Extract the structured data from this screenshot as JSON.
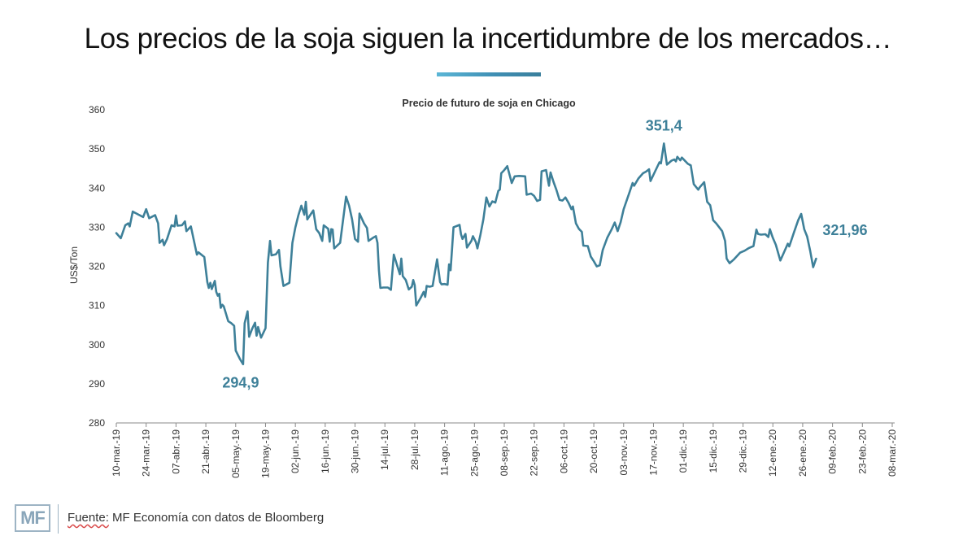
{
  "page": {
    "title": "Los precios de la soja siguen la incertidumbre de los mercados…",
    "footer": {
      "logo_text": "MF",
      "source_label": "Fuente:",
      "source_text": "MF Economía con datos de Bloomberg"
    }
  },
  "colors": {
    "line": "#3e8099",
    "annotation": "#3e8099",
    "axis": "#333333",
    "title_underline": "#4aa3c6"
  },
  "chart_data": {
    "type": "line",
    "title": "Precio de futuro de soja en Chicago",
    "xlabel": "",
    "ylabel": "US$/Ton",
    "ylim": [
      280,
      360
    ],
    "yticks": [
      280,
      290,
      300,
      310,
      320,
      330,
      340,
      350,
      360
    ],
    "grid": false,
    "categories": [
      "10-mar.-19",
      "24-mar.-19",
      "07-abr.-19",
      "21-abr.-19",
      "05-may.-19",
      "19-may.-19",
      "02-jun.-19",
      "16-jun.-19",
      "30-jun.-19",
      "14-jul.-19",
      "28-jul.-19",
      "11-ago.-19",
      "25-ago.-19",
      "08-sep.-19",
      "22-sep.-19",
      "06-oct.-19",
      "20-oct.-19",
      "03-nov.-19",
      "17-nov.-19",
      "01-dic.-19",
      "15-dic.-19",
      "29-dic.-19",
      "12-ene.-20",
      "26-ene.-20",
      "09-feb.-20",
      "23-feb.-20",
      "08-mar.-20"
    ],
    "series": [
      {
        "name": "Precio de futuro de soja en Chicago",
        "points": [
          [
            0,
            328.5
          ],
          [
            0.15,
            327.2
          ],
          [
            0.3,
            330.5
          ],
          [
            0.4,
            331
          ],
          [
            0.45,
            330.2
          ],
          [
            0.55,
            334
          ],
          [
            0.75,
            333.2
          ],
          [
            0.9,
            332.6
          ],
          [
            1.0,
            334.6
          ],
          [
            1.1,
            332.3
          ],
          [
            1.3,
            333.1
          ],
          [
            1.4,
            331
          ],
          [
            1.45,
            326
          ],
          [
            1.55,
            326.8
          ],
          [
            1.6,
            325.4
          ],
          [
            1.7,
            327
          ],
          [
            1.85,
            330.5
          ],
          [
            1.95,
            330.2
          ],
          [
            2.0,
            333
          ],
          [
            2.05,
            330.4
          ],
          [
            2.2,
            330.5
          ],
          [
            2.3,
            331.5
          ],
          [
            2.35,
            329
          ],
          [
            2.5,
            330.2
          ],
          [
            2.7,
            323
          ],
          [
            2.75,
            323.6
          ],
          [
            2.95,
            322.4
          ],
          [
            3.05,
            316
          ],
          [
            3.1,
            314.5
          ],
          [
            3.15,
            315.8
          ],
          [
            3.2,
            314.2
          ],
          [
            3.3,
            316.3
          ],
          [
            3.35,
            313.5
          ],
          [
            3.4,
            312.5
          ],
          [
            3.45,
            313
          ],
          [
            3.5,
            309.4
          ],
          [
            3.55,
            310.2
          ],
          [
            3.6,
            309.8
          ],
          [
            3.75,
            306
          ],
          [
            3.85,
            305.5
          ],
          [
            3.95,
            304.8
          ],
          [
            4.0,
            298.5
          ],
          [
            4.15,
            296.2
          ],
          [
            4.25,
            295
          ],
          [
            4.3,
            305.5
          ],
          [
            4.4,
            308.5
          ],
          [
            4.45,
            302
          ],
          [
            4.55,
            304
          ],
          [
            4.65,
            305.6
          ],
          [
            4.7,
            302.3
          ],
          [
            4.75,
            304.5
          ],
          [
            4.85,
            301.8
          ],
          [
            5.0,
            304.2
          ],
          [
            5.08,
            321
          ],
          [
            5.15,
            326.5
          ],
          [
            5.2,
            322.8
          ],
          [
            5.35,
            323.1
          ],
          [
            5.45,
            324.2
          ],
          [
            5.5,
            320
          ],
          [
            5.6,
            315
          ],
          [
            5.8,
            315.8
          ],
          [
            5.9,
            326
          ],
          [
            6.0,
            330
          ],
          [
            6.1,
            333
          ],
          [
            6.2,
            335.5
          ],
          [
            6.3,
            333.2
          ],
          [
            6.35,
            336.5
          ],
          [
            6.4,
            332
          ],
          [
            6.6,
            334.3
          ],
          [
            6.7,
            329.5
          ],
          [
            6.8,
            328.5
          ],
          [
            6.9,
            326.5
          ],
          [
            6.95,
            330.5
          ],
          [
            7.1,
            329.6
          ],
          [
            7.15,
            326.3
          ],
          [
            7.2,
            329.5
          ],
          [
            7.25,
            329.4
          ],
          [
            7.3,
            324.6
          ],
          [
            7.5,
            326
          ],
          [
            7.6,
            332
          ],
          [
            7.7,
            337.8
          ],
          [
            7.8,
            335.5
          ],
          [
            7.9,
            332
          ],
          [
            8.0,
            327
          ],
          [
            8.1,
            326.3
          ],
          [
            8.15,
            333.5
          ],
          [
            8.3,
            331
          ],
          [
            8.4,
            329.8
          ],
          [
            8.45,
            326.5
          ],
          [
            8.6,
            327.3
          ],
          [
            8.7,
            327.7
          ],
          [
            8.75,
            326
          ],
          [
            8.8,
            319
          ],
          [
            8.85,
            314.5
          ],
          [
            8.95,
            314.6
          ],
          [
            9.1,
            314.6
          ],
          [
            9.2,
            314
          ],
          [
            9.3,
            323
          ],
          [
            9.4,
            320.5
          ],
          [
            9.5,
            318
          ],
          [
            9.55,
            322
          ],
          [
            9.6,
            317.5
          ],
          [
            9.7,
            316.5
          ],
          [
            9.8,
            314.1
          ],
          [
            9.9,
            314.8
          ],
          [
            9.95,
            316.5
          ],
          [
            10.0,
            315.2
          ],
          [
            10.05,
            310
          ],
          [
            10.2,
            312
          ],
          [
            10.3,
            313.5
          ],
          [
            10.35,
            312.2
          ],
          [
            10.4,
            315
          ],
          [
            10.5,
            314.8
          ],
          [
            10.6,
            315
          ],
          [
            10.75,
            321.8
          ],
          [
            10.85,
            316
          ],
          [
            10.9,
            315.4
          ],
          [
            11.0,
            315.5
          ],
          [
            11.1,
            315.3
          ],
          [
            11.15,
            320.5
          ],
          [
            11.2,
            319
          ],
          [
            11.3,
            330
          ],
          [
            11.5,
            330.6
          ],
          [
            11.55,
            328.2
          ],
          [
            11.6,
            327
          ],
          [
            11.7,
            328.3
          ],
          [
            11.75,
            324.8
          ],
          [
            11.9,
            326.5
          ],
          [
            11.95,
            327.7
          ],
          [
            12.05,
            326.2
          ],
          [
            12.1,
            324.6
          ],
          [
            12.2,
            328
          ],
          [
            12.3,
            332
          ],
          [
            12.4,
            337.6
          ],
          [
            12.5,
            335.3
          ],
          [
            12.6,
            336.6
          ],
          [
            12.7,
            336.3
          ],
          [
            12.8,
            339.3
          ],
          [
            12.85,
            339.6
          ],
          [
            12.9,
            343.8
          ],
          [
            13.0,
            344.6
          ],
          [
            13.1,
            345.6
          ],
          [
            13.25,
            341.3
          ],
          [
            13.35,
            343
          ],
          [
            13.5,
            343.1
          ],
          [
            13.7,
            343
          ],
          [
            13.75,
            338.3
          ],
          [
            13.9,
            338.6
          ],
          [
            14.0,
            338
          ],
          [
            14.1,
            336.7
          ],
          [
            14.2,
            337
          ],
          [
            14.25,
            344.3
          ],
          [
            14.4,
            344.6
          ],
          [
            14.5,
            340.6
          ],
          [
            14.55,
            344
          ],
          [
            14.65,
            341.6
          ],
          [
            14.75,
            339.5
          ],
          [
            14.85,
            337
          ],
          [
            14.95,
            336.8
          ],
          [
            15.05,
            337.6
          ],
          [
            15.15,
            336.3
          ],
          [
            15.25,
            334.6
          ],
          [
            15.3,
            335.3
          ],
          [
            15.4,
            331
          ],
          [
            15.5,
            329.6
          ],
          [
            15.6,
            328.8
          ],
          [
            15.65,
            325.3
          ],
          [
            15.8,
            325.2
          ],
          [
            15.9,
            322.5
          ],
          [
            16.0,
            321.3
          ],
          [
            16.1,
            320
          ],
          [
            16.2,
            320.3
          ],
          [
            16.3,
            324.2
          ],
          [
            16.45,
            327.3
          ],
          [
            16.6,
            329.5
          ],
          [
            16.7,
            331.2
          ],
          [
            16.8,
            329
          ],
          [
            16.9,
            331.3
          ],
          [
            17.0,
            334.6
          ],
          [
            17.2,
            339
          ],
          [
            17.3,
            341.3
          ],
          [
            17.35,
            340.6
          ],
          [
            17.5,
            342.5
          ],
          [
            17.65,
            343.8
          ],
          [
            17.75,
            344.2
          ],
          [
            17.85,
            344.8
          ],
          [
            17.9,
            341.8
          ],
          [
            18.05,
            344.2
          ],
          [
            18.2,
            346.6
          ],
          [
            18.25,
            346.3
          ],
          [
            18.35,
            351.4
          ],
          [
            18.45,
            346
          ],
          [
            18.6,
            347
          ],
          [
            18.7,
            347.3
          ],
          [
            18.75,
            346.8
          ],
          [
            18.8,
            348
          ],
          [
            18.9,
            347.1
          ],
          [
            18.95,
            347.8
          ],
          [
            19.15,
            346.2
          ],
          [
            19.25,
            345.8
          ],
          [
            19.35,
            341
          ],
          [
            19.5,
            339.6
          ],
          [
            19.55,
            340.2
          ],
          [
            19.7,
            341.5
          ],
          [
            19.8,
            336.5
          ],
          [
            19.9,
            335.6
          ],
          [
            20.0,
            331.8
          ],
          [
            20.1,
            331
          ],
          [
            20.3,
            329
          ],
          [
            20.4,
            326.5
          ],
          [
            20.45,
            322
          ],
          [
            20.55,
            320.8
          ],
          [
            20.7,
            321.8
          ],
          [
            20.9,
            323.5
          ],
          [
            21.05,
            324
          ],
          [
            21.2,
            324.7
          ],
          [
            21.35,
            325.2
          ],
          [
            21.45,
            329.4
          ],
          [
            21.5,
            328.3
          ],
          [
            21.6,
            328.1
          ],
          [
            21.75,
            328.2
          ],
          [
            21.85,
            327.5
          ],
          [
            21.9,
            329.5
          ],
          [
            22.0,
            327.3
          ],
          [
            22.1,
            325.5
          ],
          [
            22.25,
            321.5
          ],
          [
            22.35,
            323.2
          ],
          [
            22.5,
            325.8
          ],
          [
            22.55,
            325.1
          ],
          [
            22.7,
            328.5
          ],
          [
            22.85,
            331.8
          ],
          [
            22.95,
            333.4
          ],
          [
            23.05,
            329.5
          ],
          [
            23.15,
            327.6
          ],
          [
            23.25,
            324
          ],
          [
            23.35,
            319.8
          ],
          [
            23.45,
            321.96
          ]
        ]
      }
    ],
    "annotations": [
      {
        "text": "351,4",
        "x": 18.35,
        "y": 351.4,
        "placement": "above"
      },
      {
        "text": "294,9",
        "x": 4.25,
        "y": 294.9,
        "placement": "below"
      },
      {
        "text": "321,96",
        "x": 23.45,
        "y": 321.96,
        "placement": "right"
      }
    ]
  }
}
